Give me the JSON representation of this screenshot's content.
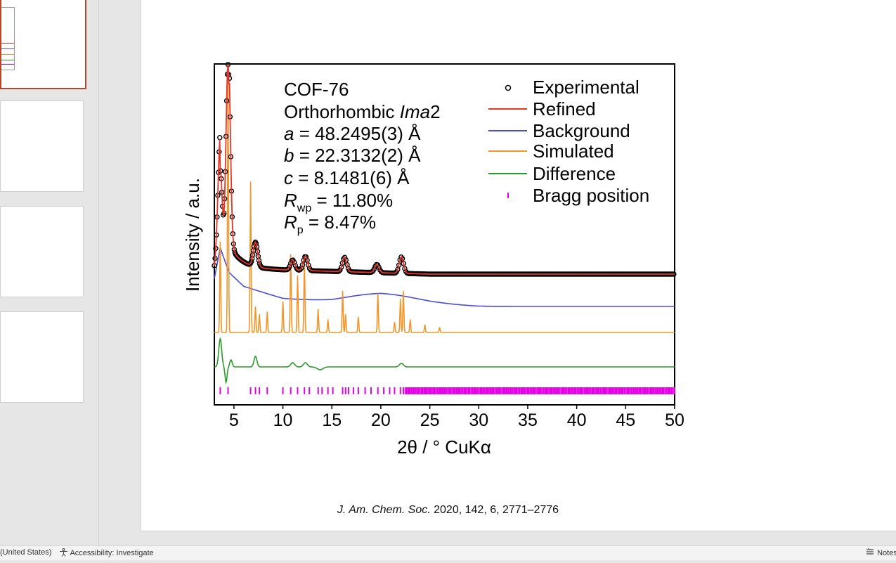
{
  "statusbar": {
    "language": "(United States)",
    "accessibility": "Accessibility: Investigate",
    "notes": "Notes",
    "accessibility_icon": "accessibility-person-icon",
    "notes_icon": "notes-icon"
  },
  "thumbnails": {
    "count": 4,
    "active_index": 0,
    "accent": "#b7472a"
  },
  "slide": {
    "citation_journal": "J. Am. Chem. Soc.",
    "citation_rest": " 2020, 142, 6, 2771–2776"
  },
  "chart_data": {
    "type": "line",
    "xlabel": "2θ / ° CuKα",
    "ylabel": "Intensity / a.u.",
    "xlim": [
      3,
      50
    ],
    "x_ticks": [
      5,
      10,
      15,
      20,
      25,
      30,
      35,
      40,
      45,
      50
    ],
    "x_tick_labels": [
      "5",
      "10",
      "15",
      "20",
      "25",
      "30",
      "35",
      "40",
      "45",
      "50"
    ],
    "y_ticks_shown": false,
    "grid": false,
    "legend_position": "top-right",
    "annotation": {
      "name": "COF-76",
      "crystal_system": "Orthorhombic ",
      "space_group": "Ima",
      "space_group_number": "2",
      "a_sym": "a",
      "a_val": " = 48.2495(3) Å",
      "b_sym": "b",
      "b_val": " = 22.3132(2) Å",
      "c_sym": "c",
      "c_val": " = 8.1481(6) Å",
      "rwp_sym": "R",
      "rwp_sub": "wp",
      "rwp_val": " = 11.80%",
      "rp_sym": "R",
      "rp_sub": "p",
      "rp_val": " = 8.47%"
    },
    "series": [
      {
        "name": "Experimental",
        "style": "circles",
        "color": "#000000",
        "peaks": [
          [
            3.6,
            0.48
          ],
          [
            4.4,
            1.0
          ],
          [
            7.2,
            0.12
          ],
          [
            11.0,
            0.05
          ],
          [
            12.3,
            0.07
          ],
          [
            16.3,
            0.07
          ],
          [
            19.6,
            0.04
          ],
          [
            22.1,
            0.08
          ]
        ]
      },
      {
        "name": "Refined",
        "style": "line",
        "color": "#e8352a"
      },
      {
        "name": "Background",
        "style": "line",
        "color": "#4b4bd8",
        "points": [
          [
            3.0,
            0.18
          ],
          [
            3.6,
            0.38
          ],
          [
            4.5,
            0.22
          ],
          [
            6,
            0.13
          ],
          [
            10,
            0.05
          ],
          [
            15,
            0.02
          ],
          [
            20,
            0.03
          ],
          [
            25,
            0.01
          ],
          [
            30,
            0.0
          ],
          [
            50,
            0.0
          ]
        ]
      },
      {
        "name": "Simulated",
        "style": "line",
        "color": "#f0962a",
        "peaks": [
          [
            3.6,
            0.35
          ],
          [
            4.4,
            1.0
          ],
          [
            6.7,
            0.58
          ],
          [
            7.2,
            0.1
          ],
          [
            7.6,
            0.07
          ],
          [
            8.4,
            0.08
          ],
          [
            10.0,
            0.12
          ],
          [
            10.8,
            0.3
          ],
          [
            11.5,
            0.22
          ],
          [
            12.2,
            0.28
          ],
          [
            13.6,
            0.09
          ],
          [
            14.6,
            0.05
          ],
          [
            16.1,
            0.16
          ],
          [
            16.4,
            0.07
          ],
          [
            17.7,
            0.06
          ],
          [
            19.7,
            0.15
          ],
          [
            21.4,
            0.04
          ],
          [
            22.0,
            0.13
          ],
          [
            22.3,
            0.16
          ],
          [
            23.0,
            0.05
          ],
          [
            24.5,
            0.03
          ],
          [
            26.0,
            0.02
          ]
        ]
      },
      {
        "name": "Difference",
        "style": "line",
        "color": "#2a9a2a"
      },
      {
        "name": "Bragg position",
        "style": "ticks",
        "color": "#e400e4",
        "positions": [
          3.6,
          4.4,
          6.7,
          7.2,
          7.6,
          8.4,
          10.0,
          10.8,
          11.5,
          12.2,
          12.7,
          13.6,
          14.0,
          14.6,
          15.1,
          16.1,
          16.4,
          16.7,
          17.2,
          17.7,
          18.4,
          19.0,
          19.7,
          20.3,
          20.9,
          21.4,
          22.0,
          22.3,
          22.8,
          23.3,
          23.7,
          24.2,
          24.5,
          25.0,
          25.5,
          26.0,
          26.5,
          27.0,
          27.5,
          28.0,
          28.5,
          29.0,
          29.6,
          30.2,
          30.8,
          31.4,
          32.0,
          32.6,
          33.2,
          33.8,
          34.4,
          35.0,
          35.6,
          36.2,
          36.8,
          37.4,
          38.0,
          38.6,
          39.2,
          39.8,
          40.4,
          41.0,
          41.6,
          42.2,
          42.8,
          43.4,
          44.0,
          44.6,
          45.2,
          45.8,
          46.4,
          47.0,
          47.6,
          48.2,
          48.8,
          49.4,
          50.0
        ],
        "dense_from": 22.5
      }
    ]
  }
}
